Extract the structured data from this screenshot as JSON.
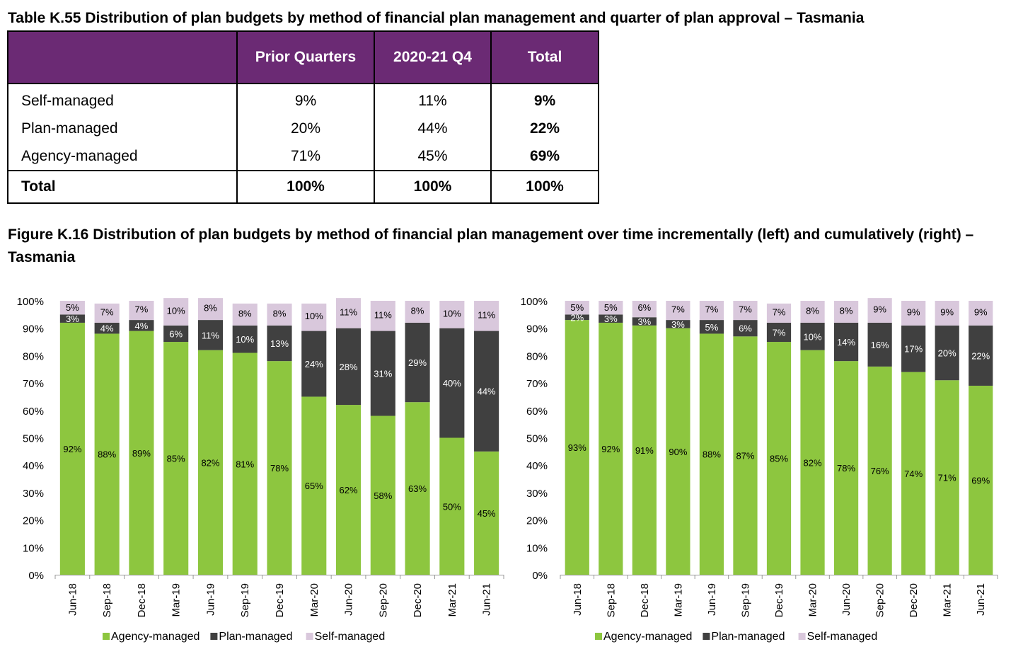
{
  "table": {
    "title": "Table K.55 Distribution of plan budgets by method of financial plan management and quarter of plan approval – Tasmania",
    "headers": [
      "",
      "Prior Quarters",
      "2020-21 Q4",
      "Total"
    ],
    "rows": [
      {
        "label": "Self-managed",
        "values": [
          "9%",
          "11%",
          "9%"
        ]
      },
      {
        "label": "Plan-managed",
        "values": [
          "20%",
          "44%",
          "22%"
        ]
      },
      {
        "label": "Agency-managed",
        "values": [
          "71%",
          "45%",
          "69%"
        ]
      }
    ],
    "total": {
      "label": "Total",
      "values": [
        "100%",
        "100%",
        "100%"
      ]
    },
    "header_color": "#6b2a74"
  },
  "figure": {
    "title": "Figure K.16 Distribution of plan budgets by method of financial plan management over time incrementally (left) and cumulatively (right) – Tasmania"
  },
  "colors": {
    "agency": "#8dc63f",
    "plan": "#404040",
    "self": "#d9c8dc"
  },
  "chart_data": [
    {
      "type": "bar",
      "stacked": true,
      "categories": [
        "Jun-18",
        "Sep-18",
        "Dec-18",
        "Mar-19",
        "Jun-19",
        "Sep-19",
        "Dec-19",
        "Mar-20",
        "Jun-20",
        "Sep-20",
        "Dec-20",
        "Mar-21",
        "Jun-21"
      ],
      "series": [
        {
          "name": "Agency-managed",
          "values": [
            92,
            88,
            89,
            85,
            82,
            81,
            78,
            65,
            62,
            58,
            63,
            50,
            45
          ]
        },
        {
          "name": "Plan-managed",
          "values": [
            3,
            4,
            4,
            6,
            11,
            10,
            13,
            24,
            28,
            31,
            29,
            40,
            44
          ]
        },
        {
          "name": "Self-managed",
          "values": [
            5,
            7,
            7,
            10,
            8,
            8,
            8,
            10,
            11,
            11,
            8,
            10,
            11
          ]
        }
      ],
      "yticks": [
        "0%",
        "10%",
        "20%",
        "30%",
        "40%",
        "50%",
        "60%",
        "70%",
        "80%",
        "90%",
        "100%"
      ],
      "ylim": [
        0,
        100
      ],
      "legend": "bottom"
    },
    {
      "type": "bar",
      "stacked": true,
      "categories": [
        "Jun-18",
        "Sep-18",
        "Dec-18",
        "Mar-19",
        "Jun-19",
        "Sep-19",
        "Dec-19",
        "Mar-20",
        "Jun-20",
        "Sep-20",
        "Dec-20",
        "Mar-21",
        "Jun-21"
      ],
      "series": [
        {
          "name": "Agency-managed",
          "values": [
            93,
            92,
            91,
            90,
            88,
            87,
            85,
            82,
            78,
            76,
            74,
            71,
            69
          ]
        },
        {
          "name": "Plan-managed",
          "values": [
            2,
            3,
            3,
            3,
            5,
            6,
            7,
            10,
            14,
            16,
            17,
            20,
            22
          ]
        },
        {
          "name": "Self-managed",
          "values": [
            5,
            5,
            6,
            7,
            7,
            7,
            7,
            8,
            8,
            9,
            9,
            9,
            9
          ]
        }
      ],
      "yticks": [
        "0%",
        "10%",
        "20%",
        "30%",
        "40%",
        "50%",
        "60%",
        "70%",
        "80%",
        "90%",
        "100%"
      ],
      "ylim": [
        0,
        100
      ],
      "legend": "bottom"
    }
  ]
}
